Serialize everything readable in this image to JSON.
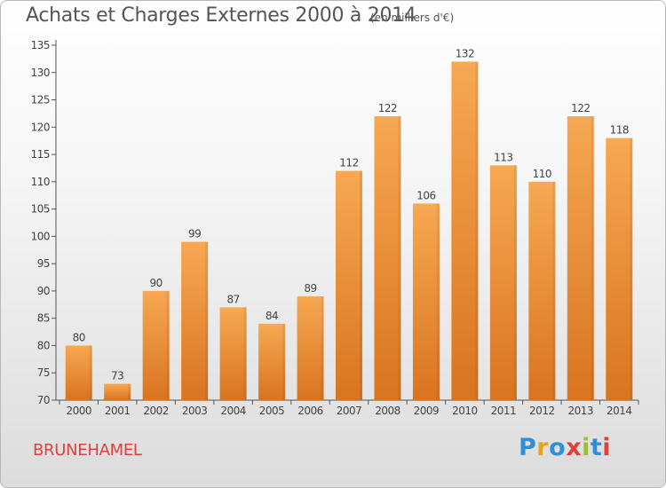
{
  "header": {
    "title": "Achats et Charges Externes 2000 à 2014",
    "subtitle": "(en milliers d'€)"
  },
  "footer": {
    "commune": "BRUNEHAMEL",
    "logo": {
      "text": "Proxiti",
      "colors": [
        "#2f8fd8",
        "#e9a21d",
        "#2f8fd8",
        "#e0413d",
        "#9cc225",
        "#2f8fd8",
        "#e0413d"
      ]
    }
  },
  "colors": {
    "bar_light": "#f7a852",
    "bar_dark": "#d97420",
    "axis": "#555555",
    "grid": "#cfcfcf"
  },
  "chart_data": {
    "type": "bar",
    "categories": [
      "2000",
      "2001",
      "2002",
      "2003",
      "2004",
      "2005",
      "2006",
      "2007",
      "2008",
      "2009",
      "2010",
      "2011",
      "2012",
      "2013",
      "2014"
    ],
    "values": [
      80,
      73,
      90,
      99,
      87,
      84,
      89,
      112,
      122,
      106,
      132,
      113,
      110,
      122,
      118
    ],
    "ylim": [
      70,
      135
    ],
    "yticks": [
      70,
      75,
      80,
      85,
      90,
      95,
      100,
      105,
      110,
      115,
      120,
      125,
      130,
      135
    ],
    "data_labels": true,
    "grid": false
  }
}
